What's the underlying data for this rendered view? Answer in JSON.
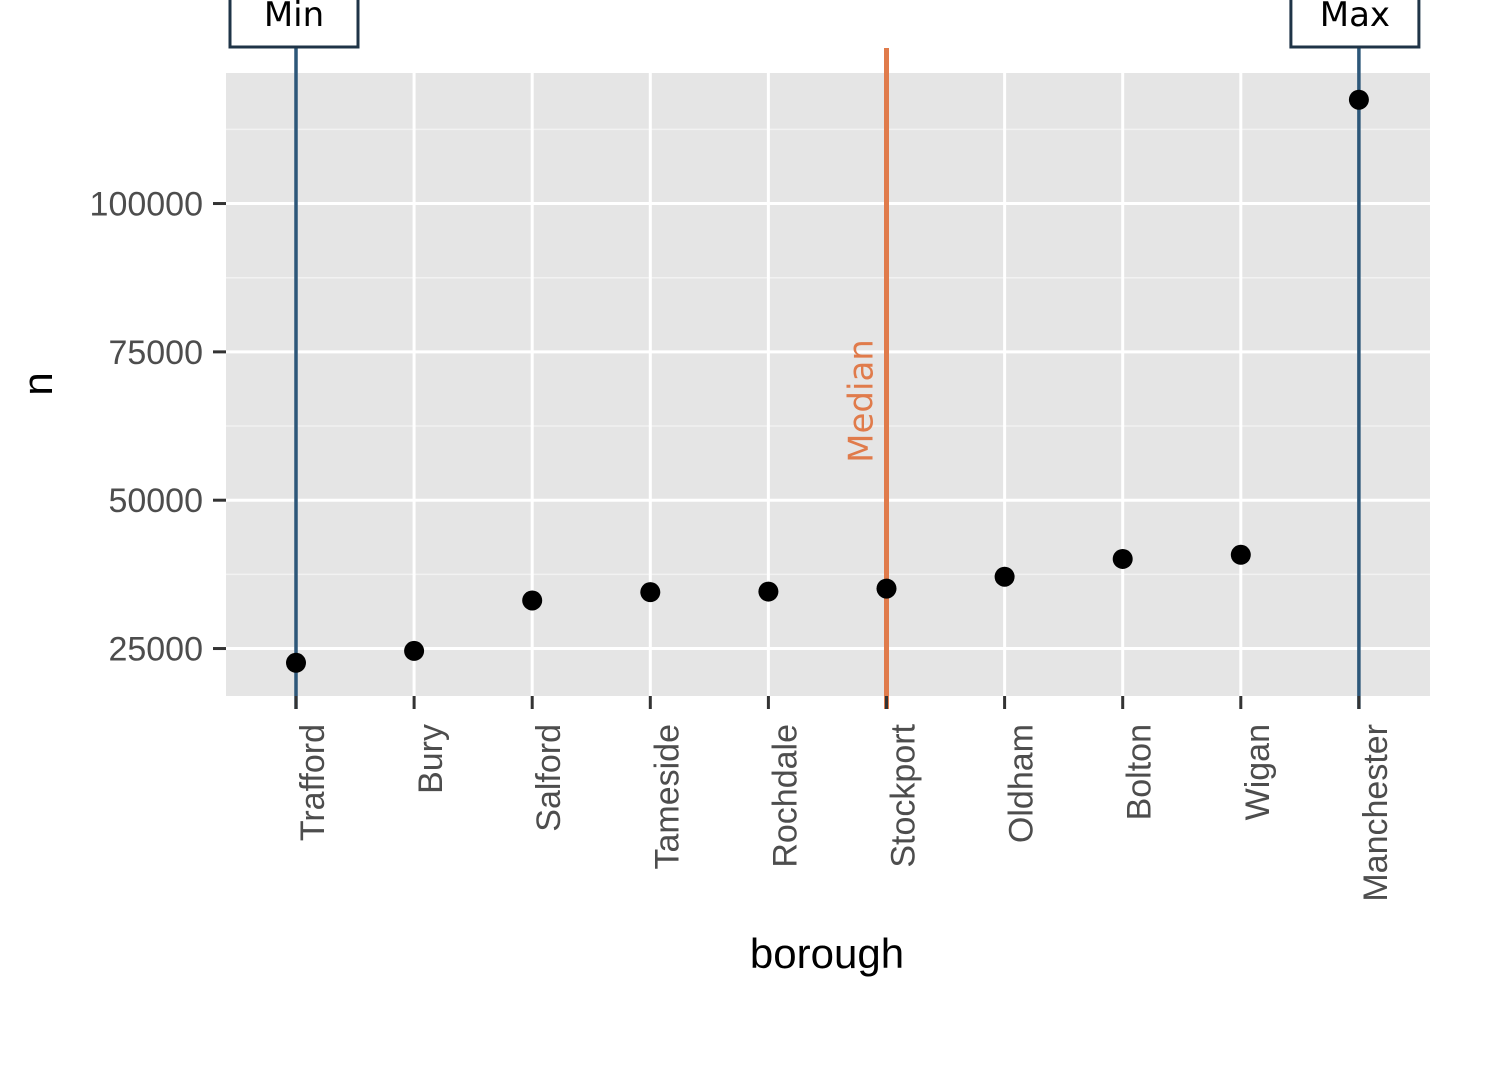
{
  "chart_data": {
    "type": "scatter",
    "categories": [
      "Trafford",
      "Bury",
      "Salford",
      "Tameside",
      "Rochdale",
      "Stockport",
      "Oldham",
      "Bolton",
      "Wigan",
      "Manchester"
    ],
    "values": [
      22600,
      24600,
      33100,
      34500,
      34600,
      35100,
      37100,
      40100,
      40800,
      117500
    ],
    "xlabel": "borough",
    "ylabel": "n",
    "ylim": [
      17000,
      122000
    ],
    "yticks": [
      25000,
      50000,
      75000,
      100000
    ],
    "ytick_labels": [
      "25000",
      "50000",
      "75000",
      "100000"
    ],
    "grid": true,
    "annotations": {
      "min": {
        "label": "Min",
        "category": "Trafford",
        "color": "#2d5779"
      },
      "max": {
        "label": "Max",
        "category": "Manchester",
        "color": "#2d5779"
      },
      "median": {
        "label": "Median",
        "position": 5.5,
        "color": "#e07b4b"
      }
    },
    "panel_color": "#e5e5e5",
    "point_color": "#000000"
  }
}
